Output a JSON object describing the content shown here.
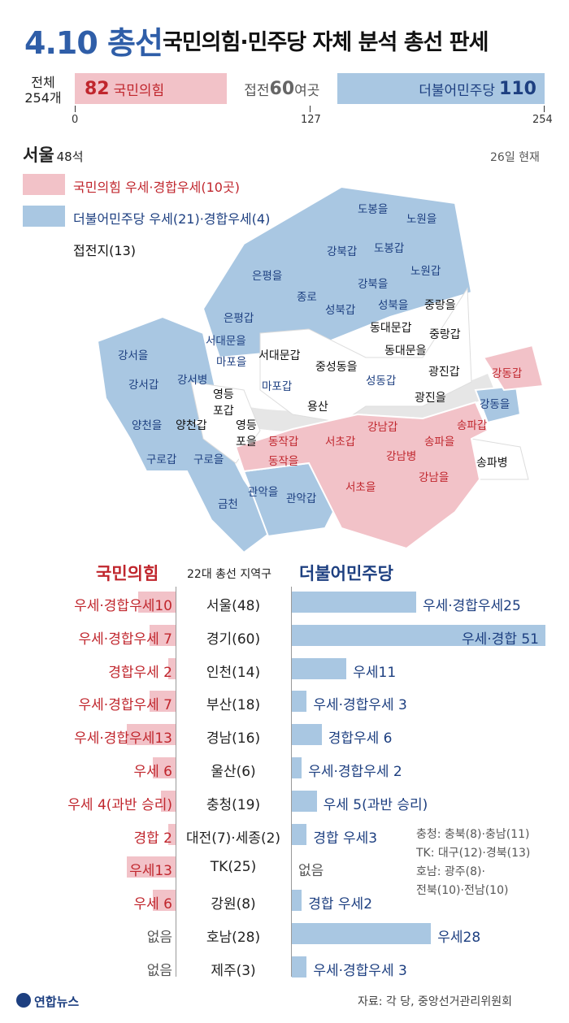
{
  "header": {
    "main": "4.10 총선",
    "sub": "국민의힘·민주당 자체 분석 총선 판세"
  },
  "seat_summary": {
    "total_label_1": "전체",
    "total_label_2": "254개",
    "ppp_count": "82",
    "ppp_name": "국민의힘",
    "tossup_prefix": "접전 ",
    "tossup_count": "60",
    "tossup_suffix": "여곳",
    "dem_name": "더불어민주당",
    "dem_count": "110",
    "ticks": [
      "0",
      "127",
      "254"
    ]
  },
  "seoul": {
    "title": "서울",
    "seats": "48석",
    "date_note": "26일 현재",
    "legend": [
      {
        "label": "국민의힘 우세·경합우세(10곳)",
        "color": "#f2c2c8",
        "text_color": "#c0262d"
      },
      {
        "label": "더불어민주당 우세(21)·경합우세(4)",
        "color": "#a9c7e2",
        "text_color": "#1d3f80"
      },
      {
        "label": "접전지(13)",
        "color": "#ffffff",
        "text_color": "#111111"
      }
    ],
    "districts_dem": [
      "도봉을",
      "노원을",
      "강북갑",
      "도봉갑",
      "노원갑",
      "은평을",
      "강북을",
      "종로",
      "성북갑",
      "성북을",
      "은평갑",
      "서대문을",
      "마포을",
      "마포갑",
      "강서을",
      "강서갑",
      "강서병",
      "양천을",
      "구로갑",
      "구로을",
      "금천",
      "관악을",
      "관악갑",
      "성동갑",
      "강동을"
    ],
    "districts_ppp": [
      "동작갑",
      "서초갑",
      "동작을",
      "강남갑",
      "강남병",
      "서초을",
      "송파갑",
      "송파을",
      "강남을",
      "강동갑"
    ],
    "districts_toss": [
      "중랑을",
      "동대문갑",
      "중랑갑",
      "동대문을",
      "서대문갑",
      "중성동을",
      "광진갑",
      "광진을",
      "용산",
      "영등포갑",
      "양천갑",
      "영등포을",
      "송파병"
    ]
  },
  "table": {
    "left_header": "국민의힘",
    "mid_header": "22대 총선 지역구",
    "right_header": "더불어민주당",
    "rows": [
      {
        "region": "서울(48)",
        "ppp_label": "우세·경합우세10",
        "ppp": 10,
        "dem_label": "우세·경합우세25",
        "dem": 25
      },
      {
        "region": "경기(60)",
        "ppp_label": "우세·경합우세 7",
        "ppp": 7,
        "dem_label": "우세·경합 51",
        "dem": 51
      },
      {
        "region": "인천(14)",
        "ppp_label": "경합우세 2",
        "ppp": 2,
        "dem_label": "우세11",
        "dem": 11
      },
      {
        "region": "부산(18)",
        "ppp_label": "우세·경합우세 7",
        "ppp": 7,
        "dem_label": "우세·경합우세 3",
        "dem": 3
      },
      {
        "region": "경남(16)",
        "ppp_label": "우세·경합우세13",
        "ppp": 13,
        "dem_label": "경합우세 6",
        "dem": 6
      },
      {
        "region": "울산(6)",
        "ppp_label": "우세 6",
        "ppp": 6,
        "dem_label": "우세·경합우세 2",
        "dem": 2
      },
      {
        "region": "충청(19)",
        "ppp_label": "우세 4(과반 승리)",
        "ppp": 4,
        "dem_label": "우세 5(과반 승리)",
        "dem": 5
      },
      {
        "region": "대전(7)·세종(2)",
        "ppp_label": "경합 2",
        "ppp": 2,
        "dem_label": "경합 우세3",
        "dem": 3
      },
      {
        "region": "TK(25)",
        "ppp_label": "우세13",
        "ppp": 13,
        "dem_label": "없음",
        "dem": 0
      },
      {
        "region": "강원(8)",
        "ppp_label": "우세 6",
        "ppp": 6,
        "dem_label": "경합 우세2",
        "dem": 2
      },
      {
        "region": "호남(28)",
        "ppp_label": "없음",
        "ppp": 0,
        "dem_label": "우세28",
        "dem": 28
      },
      {
        "region": "제주(3)",
        "ppp_label": "없음",
        "ppp": 0,
        "dem_label": "우세·경합우세 3",
        "dem": 3
      }
    ],
    "notes": [
      "충청: 충북(8)·충남(11)",
      "TK: 대구(12)·경북(13)",
      "호남: 광주(8)·",
      "전북(10)·전남(10)"
    ]
  },
  "footer": {
    "logo": "연합뉴스",
    "source": "자료: 각 당, 중앙선거관리위원회"
  },
  "chart_data": {
    "type": "bar",
    "title": "국민의힘·민주당 자체 분석 총선 판세",
    "seat_bar": {
      "total": 254,
      "ppp": 82,
      "tossup": 60,
      "dem": 110,
      "ticks": [
        0,
        127,
        254
      ]
    },
    "categories": [
      "서울(48)",
      "경기(60)",
      "인천(14)",
      "부산(18)",
      "경남(16)",
      "울산(6)",
      "충청(19)",
      "대전(7)·세종(2)",
      "TK(25)",
      "강원(8)",
      "호남(28)",
      "제주(3)"
    ],
    "series": [
      {
        "name": "국민의힘",
        "values": [
          10,
          7,
          2,
          7,
          13,
          6,
          4,
          2,
          13,
          6,
          0,
          0
        ]
      },
      {
        "name": "더불어민주당",
        "values": [
          25,
          51,
          11,
          3,
          6,
          2,
          5,
          3,
          0,
          2,
          28,
          3
        ]
      }
    ],
    "colors": {
      "ppp": "#f2c2c8",
      "dem": "#a9c7e2",
      "ppp_text": "#c0262d",
      "dem_text": "#1d3f80"
    }
  }
}
